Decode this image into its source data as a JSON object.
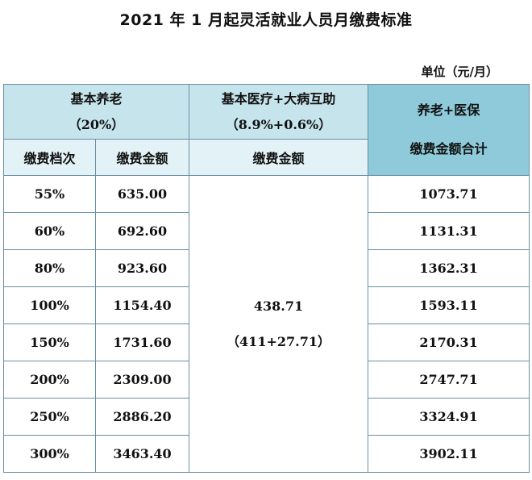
{
  "title": "2021 年 1 月起灵活就业人员月缴费标准",
  "unit_label": "单位（元/月）",
  "header": {
    "pension_title": "基本养老",
    "pension_rate": "（20%）",
    "medical_title": "基本医疗+大病互助",
    "medical_rate": "（8.9%+0.6%）",
    "combined_line1": "养老+医保",
    "combined_line2": "缴费金额合计",
    "col_level": "缴费档次",
    "col_pension_amount": "缴费金额",
    "col_medical_amount": "缴费金额"
  },
  "medical": {
    "amount": "438.71",
    "breakdown": "（411+27.71）"
  },
  "rows": [
    {
      "level": "55%",
      "pension": "635.00",
      "total": "1073.71"
    },
    {
      "level": "60%",
      "pension": "692.60",
      "total": "1131.31"
    },
    {
      "level": "80%",
      "pension": "923.60",
      "total": "1362.31"
    },
    {
      "level": "100%",
      "pension": "1154.40",
      "total": "1593.11"
    },
    {
      "level": "150%",
      "pension": "1731.60",
      "total": "2170.31"
    },
    {
      "level": "200%",
      "pension": "2309.00",
      "total": "2747.71"
    },
    {
      "level": "250%",
      "pension": "2886.20",
      "total": "3324.91"
    },
    {
      "level": "300%",
      "pension": "3463.40",
      "total": "3902.11"
    }
  ],
  "colors": {
    "header_light": "#c6e4ec",
    "header_dark": "#8ecad9",
    "header_pale": "#e2f2f6",
    "border": "#6a8fa3"
  }
}
